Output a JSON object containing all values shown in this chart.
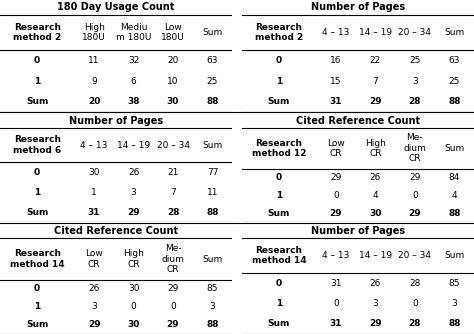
{
  "figsize": [
    4.74,
    3.34
  ],
  "dpi": 100,
  "background": "#ffffff",
  "fontsize": 6.5,
  "title_fontsize": 7.0,
  "tables": [
    {
      "title": "180 Day Usage Count",
      "header_row": [
        "Research\nmethod 2",
        "High\n180U",
        "Mediu\nm 180U",
        "Low\n180U",
        "Sum"
      ],
      "col_align": [
        "left",
        "center",
        "center",
        "center",
        "center"
      ],
      "rows": [
        [
          "0",
          "11",
          "32",
          "20",
          "63"
        ],
        [
          "1",
          "9",
          "6",
          "10",
          "25"
        ],
        [
          "Sum",
          "20",
          "38",
          "30",
          "88"
        ]
      ]
    },
    {
      "title": "Number of Pages",
      "header_row": [
        "Research\nmethod 2",
        "4 – 13",
        "14 – 19",
        "20 – 34",
        "Sum"
      ],
      "col_align": [
        "left",
        "center",
        "center",
        "center",
        "center"
      ],
      "rows": [
        [
          "0",
          "16",
          "22",
          "25",
          "63"
        ],
        [
          "1",
          "15",
          "7",
          "3",
          "25"
        ],
        [
          "Sum",
          "31",
          "29",
          "28",
          "88"
        ]
      ]
    },
    {
      "title": "Number of Pages",
      "header_row": [
        "Research\nmethod 6",
        "4 – 13",
        "14 – 19",
        "20 – 34",
        "Sum"
      ],
      "col_align": [
        "left",
        "center",
        "center",
        "center",
        "center"
      ],
      "rows": [
        [
          "0",
          "30",
          "26",
          "21",
          "77"
        ],
        [
          "1",
          "1",
          "3",
          "7",
          "11"
        ],
        [
          "Sum",
          "31",
          "29",
          "28",
          "88"
        ]
      ]
    },
    {
      "title": "Cited Reference Count",
      "header_row": [
        "Research\nmethod 12",
        "Low\nCR",
        "High\nCR",
        "Me-\ndium\nCR",
        "Sum"
      ],
      "col_align": [
        "left",
        "center",
        "center",
        "center",
        "center"
      ],
      "rows": [
        [
          "0",
          "29",
          "26",
          "29",
          "84"
        ],
        [
          "1",
          "0",
          "4",
          "0",
          "4"
        ],
        [
          "Sum",
          "29",
          "30",
          "29",
          "88"
        ]
      ]
    },
    {
      "title": "Cited Reference Count",
      "header_row": [
        "Research\nmethod 14",
        "Low\nCR",
        "High\nCR",
        "Me-\ndium\nCR",
        "Sum"
      ],
      "col_align": [
        "left",
        "center",
        "center",
        "center",
        "center"
      ],
      "rows": [
        [
          "0",
          "26",
          "30",
          "29",
          "85"
        ],
        [
          "1",
          "3",
          "0",
          "0",
          "3"
        ],
        [
          "Sum",
          "29",
          "30",
          "29",
          "88"
        ]
      ]
    },
    {
      "title": "Number of Pages",
      "header_row": [
        "Research\nmethod 14",
        "4 – 13",
        "14 – 19",
        "20 – 34",
        "Sum"
      ],
      "col_align": [
        "left",
        "center",
        "center",
        "center",
        "center"
      ],
      "rows": [
        [
          "0",
          "31",
          "26",
          "28",
          "85"
        ],
        [
          "1",
          "0",
          "3",
          "0",
          "3"
        ],
        [
          "Sum",
          "31",
          "29",
          "28",
          "88"
        ]
      ]
    }
  ],
  "layout": [
    [
      0,
      0,
      0.49,
      1.0,
      0.0,
      0.333
    ],
    [
      1,
      0.51,
      0.49,
      1.0,
      0.0,
      0.333
    ],
    [
      2,
      0.0,
      0.49,
      0.0,
      0.333,
      0.667
    ],
    [
      3,
      0.51,
      0.49,
      0.0,
      0.333,
      0.667
    ],
    [
      4,
      0.0,
      0.49,
      0.0,
      0.667,
      1.0
    ],
    [
      5,
      0.51,
      0.49,
      0.0,
      0.667,
      1.0
    ]
  ]
}
